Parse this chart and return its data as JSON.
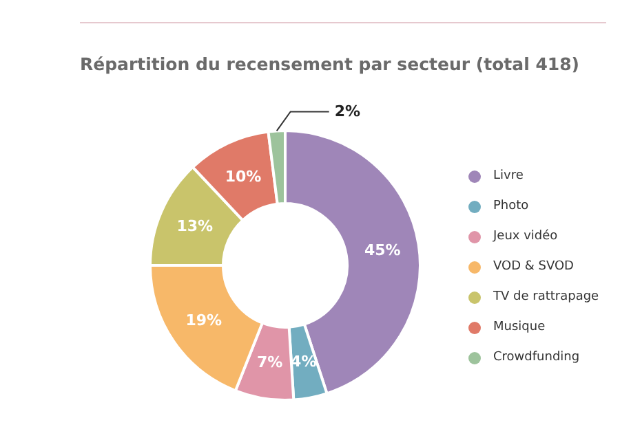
{
  "chart_data": {
    "type": "donut",
    "title": "Répartition du recensement par secteur (total 418)",
    "categories": [
      "Livre",
      "Photo",
      "Jeux vidéo",
      "VOD & SVOD",
      "TV de rattrapage",
      "Musique",
      "Crowdfunding"
    ],
    "values": [
      45,
      4,
      7,
      19,
      13,
      10,
      2
    ],
    "colors": [
      "#9f86b8",
      "#72adc0",
      "#e095a8",
      "#f7b869",
      "#c9c46b",
      "#e07a68",
      "#9dc39c"
    ],
    "value_labels": [
      "45%",
      "4%",
      "7%",
      "19%",
      "13%",
      "10%",
      "2%"
    ],
    "legend": "right"
  }
}
